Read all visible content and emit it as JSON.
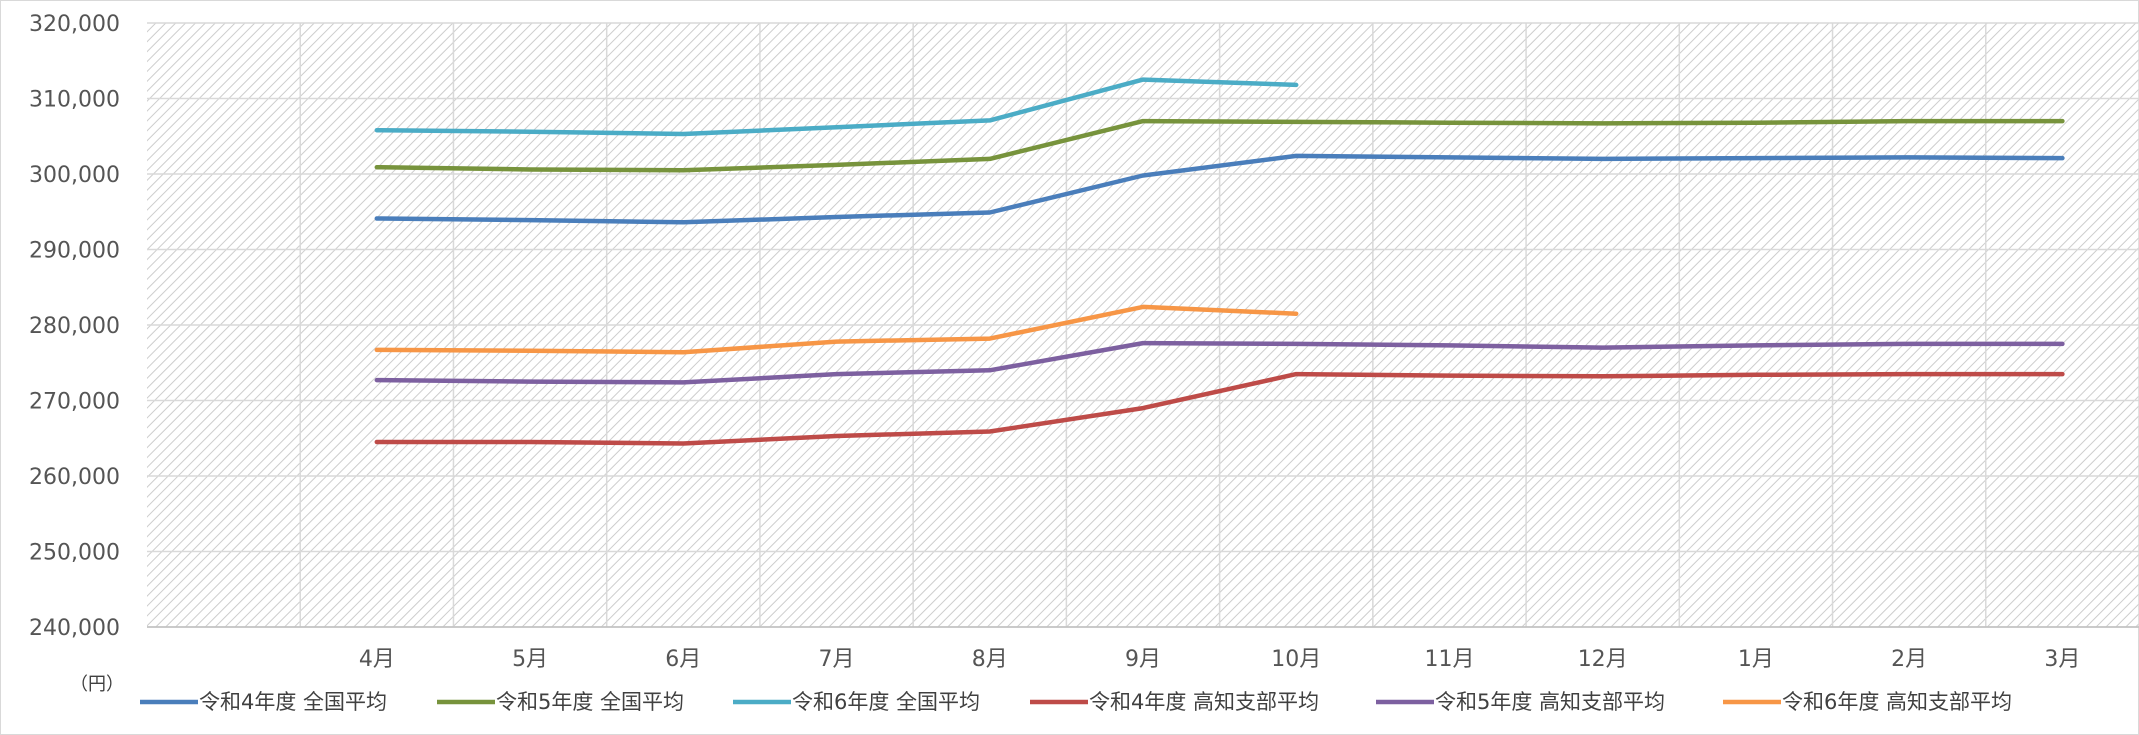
{
  "chart_data": {
    "type": "line",
    "unit_label": "（円）",
    "categories": [
      "",
      "4月",
      "5月",
      "6月",
      "7月",
      "8月",
      "9月",
      "10月",
      "11月",
      "12月",
      "1月",
      "2月",
      "3月"
    ],
    "ylim": [
      240000,
      320000
    ],
    "yticks": [
      240000,
      250000,
      260000,
      270000,
      280000,
      290000,
      300000,
      310000,
      320000
    ],
    "ytick_labels": [
      "240,000",
      "250,000",
      "260,000",
      "270,000",
      "280,000",
      "290,000",
      "300,000",
      "310,000",
      "320,000"
    ],
    "grid": true,
    "legend_position": "bottom",
    "series": [
      {
        "name": "令和4年度 全国平均",
        "color": "#4a7ebb",
        "values": [
          null,
          294100,
          293900,
          293600,
          294300,
          294900,
          299800,
          302400,
          302200,
          302000,
          302100,
          302200,
          302100
        ]
      },
      {
        "name": "令和5年度 全国平均",
        "color": "#77933c",
        "values": [
          null,
          300900,
          300600,
          300500,
          301200,
          302000,
          307000,
          306900,
          306800,
          306700,
          306800,
          307000,
          307000
        ]
      },
      {
        "name": "令和6年度 全国平均",
        "color": "#4bacc6",
        "values": [
          null,
          305800,
          305600,
          305300,
          306200,
          307100,
          312500,
          311800,
          null,
          null,
          null,
          null,
          null
        ]
      },
      {
        "name": "令和4年度 高知支部平均",
        "color": "#be4b48",
        "values": [
          null,
          264500,
          264500,
          264300,
          265300,
          265900,
          269000,
          273500,
          273300,
          273200,
          273400,
          273500,
          273500
        ]
      },
      {
        "name": "令和5年度 高知支部平均",
        "color": "#7d60a0",
        "values": [
          null,
          272700,
          272500,
          272400,
          273500,
          274000,
          277600,
          277500,
          277300,
          277000,
          277300,
          277500,
          277500
        ]
      },
      {
        "name": "令和6年度 高知支部平均",
        "color": "#f79646",
        "values": [
          null,
          276700,
          276600,
          276400,
          277800,
          278200,
          282400,
          281500,
          null,
          null,
          null,
          null,
          null
        ]
      }
    ]
  }
}
